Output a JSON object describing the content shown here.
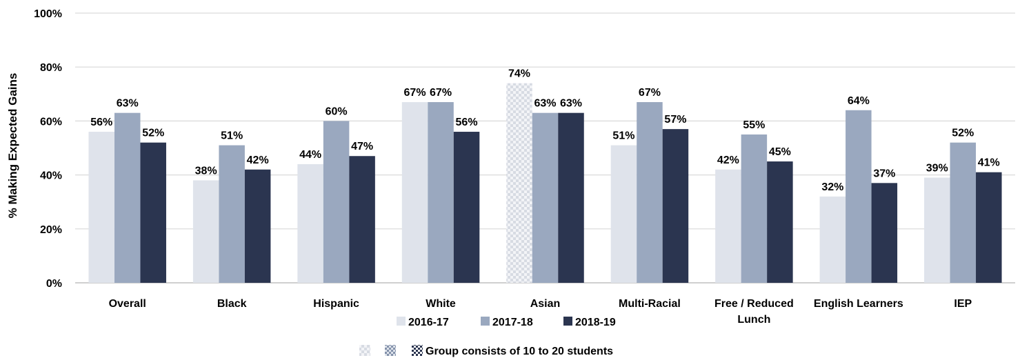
{
  "chart_data": {
    "type": "bar",
    "title": "",
    "xlabel": "",
    "ylabel": "% Making Expected Gains",
    "ylim": [
      0,
      100
    ],
    "yticks": [
      "0%",
      "20%",
      "40%",
      "60%",
      "80%",
      "100%"
    ],
    "ytick_values": [
      0,
      20,
      40,
      60,
      80,
      100
    ],
    "grid": true,
    "legend_position": "bottom",
    "categories": [
      [
        "Overall"
      ],
      [
        "Black"
      ],
      [
        "Hispanic"
      ],
      [
        "White"
      ],
      [
        "Asian"
      ],
      [
        "Multi-Racial"
      ],
      [
        "Free / Reduced",
        "Lunch"
      ],
      [
        "English Learners"
      ],
      [
        "IEP"
      ]
    ],
    "series": [
      {
        "name": "2016-17",
        "color": "#dfe3eb",
        "values": [
          56,
          38,
          44,
          67,
          74,
          51,
          42,
          32,
          39
        ],
        "labels": [
          "56%",
          "38%",
          "44%",
          "67%",
          "74%",
          "51%",
          "42%",
          "32%",
          "39%"
        ]
      },
      {
        "name": "2017-18",
        "color": "#9aa8bf",
        "values": [
          63,
          51,
          60,
          67,
          63,
          67,
          55,
          64,
          52
        ],
        "labels": [
          "63%",
          "51%",
          "60%",
          "67%",
          "63%",
          "67%",
          "55%",
          "64%",
          "52%"
        ]
      },
      {
        "name": "2018-19",
        "color": "#2b3550",
        "values": [
          52,
          42,
          47,
          56,
          63,
          57,
          45,
          37,
          41
        ],
        "labels": [
          "52%",
          "42%",
          "47%",
          "56%",
          "63%",
          "57%",
          "45%",
          "37%",
          "41%"
        ]
      }
    ],
    "small_group": {
      "category_index": 4,
      "series_index": 0
    },
    "small_group_note": "Group consists of 10 to 20 students"
  }
}
